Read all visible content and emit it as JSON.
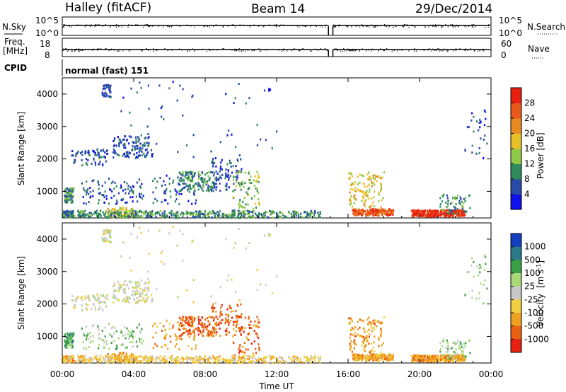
{
  "header": {
    "station": "Halley (fitACF)",
    "beam": "Beam 14",
    "date": "29/Dec/2014"
  },
  "top_panels": {
    "nsky_label": "N.Sky",
    "nsearch_label": "N.Search",
    "nsky_ticks": [
      "10^5",
      "10^0"
    ],
    "nsearch_ticks": [
      "10^5",
      "10^0"
    ],
    "freq_label": "Freq.",
    "freq_unit": "[MHz]",
    "freq_ticks": [
      "18",
      "8"
    ],
    "nave_label": "Nave",
    "nave_ticks": [
      "60",
      "0"
    ],
    "cpid_label": "CPID",
    "cpid_value": "normal (fast) 151"
  },
  "chart_data": [
    {
      "type": "heatmap",
      "name": "power-panel",
      "ylabel": "Slant Range [km]",
      "yticks": [
        1000,
        2000,
        3000,
        4000
      ],
      "ylim": [
        180,
        4500
      ],
      "xlim": [
        0,
        24
      ],
      "colorbar_label": "Power [dB]",
      "colorbar_ticks": [
        "4",
        "8",
        "12",
        "16",
        "20",
        "24",
        "28"
      ],
      "colorbar_colors": [
        "#1010ee",
        "#2a4aa8",
        "#2e8a5a",
        "#90c848",
        "#e8c028",
        "#e88a20",
        "#e85818",
        "#e82010"
      ],
      "data_gap_hours": [
        14.9,
        15.15
      ]
    },
    {
      "type": "heatmap",
      "name": "velocity-panel",
      "ylabel": "Slant Range [km]",
      "yticks": [
        1000,
        2000,
        3000,
        4000
      ],
      "ylim": [
        180,
        4500
      ],
      "xlim": [
        0,
        24
      ],
      "xlabel": "Time UT",
      "xticks": [
        "00:00",
        "04:00",
        "08:00",
        "12:00",
        "16:00",
        "20:00",
        "00:00"
      ],
      "colorbar_label": "Velocity",
      "colorbar_unit": "[m s",
      "colorbar_unit_sup": "-1",
      "colorbar_unit_end": "]",
      "colorbar_ticks": [
        "1000",
        "500",
        "100",
        "25",
        "-25",
        "-100",
        "-500",
        "-1000"
      ],
      "colorbar_colors": [
        "#1040c0",
        "#2a7a8a",
        "#3aa048",
        "#a8d878",
        "#c8c8c8",
        "#f0d040",
        "#f0a020",
        "#e86010",
        "#e82010"
      ]
    }
  ]
}
